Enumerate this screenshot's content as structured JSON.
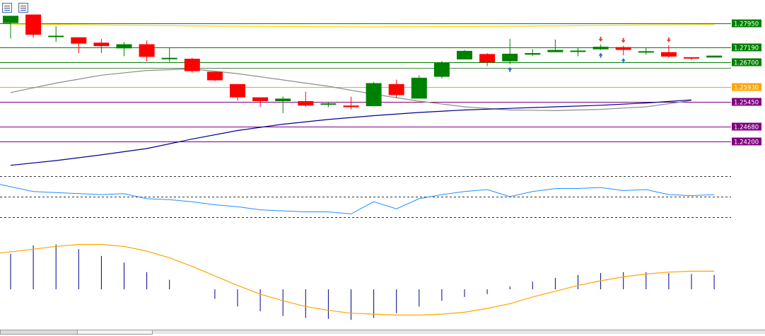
{
  "toolbar": {
    "icons": [
      "chart-list-icon",
      "chart-properties-icon"
    ]
  },
  "chart_data": {
    "type": "candlestick",
    "colors": {
      "bull": "#008000",
      "bear": "#ff0000",
      "ma_fast": "#8c8c8c",
      "ma_slow": "#00008b",
      "ma_long": "#ffd700",
      "rsi": "#1e90ff",
      "signal": "#ffa500",
      "histogram": "#00008b",
      "buy_arrow": "#1e6fd9",
      "sell_arrow": "#e04020"
    },
    "price_range": [
      1.2342,
      1.2868
    ],
    "candles": [
      {
        "o": 1.2795,
        "h": 1.2818,
        "l": 1.2746,
        "c": 1.2818
      },
      {
        "o": 1.2822,
        "h": 1.2822,
        "l": 1.2748,
        "c": 1.2758
      },
      {
        "o": 1.2755,
        "h": 1.2785,
        "l": 1.2735,
        "c": 1.2755
      },
      {
        "o": 1.275,
        "h": 1.275,
        "l": 1.27,
        "c": 1.273
      },
      {
        "o": 1.2733,
        "h": 1.2745,
        "l": 1.27,
        "c": 1.2722
      },
      {
        "o": 1.2715,
        "h": 1.2735,
        "l": 1.269,
        "c": 1.2728
      },
      {
        "o": 1.2728,
        "h": 1.274,
        "l": 1.2673,
        "c": 1.2688
      },
      {
        "o": 1.2683,
        "h": 1.2717,
        "l": 1.2672,
        "c": 1.2685
      },
      {
        "o": 1.2682,
        "h": 1.2685,
        "l": 1.2637,
        "c": 1.2643
      },
      {
        "o": 1.2641,
        "h": 1.2641,
        "l": 1.2611,
        "c": 1.2614
      },
      {
        "o": 1.2602,
        "h": 1.2602,
        "l": 1.255,
        "c": 1.256
      },
      {
        "o": 1.256,
        "h": 1.256,
        "l": 1.253,
        "c": 1.2548
      },
      {
        "o": 1.2548,
        "h": 1.2563,
        "l": 1.251,
        "c": 1.2556
      },
      {
        "o": 1.2548,
        "h": 1.2578,
        "l": 1.253,
        "c": 1.2534
      },
      {
        "o": 1.2537,
        "h": 1.2545,
        "l": 1.2529,
        "c": 1.2541
      },
      {
        "o": 1.2534,
        "h": 1.2562,
        "l": 1.2522,
        "c": 1.2529
      },
      {
        "o": 1.2532,
        "h": 1.2608,
        "l": 1.2532,
        "c": 1.2605
      },
      {
        "o": 1.2602,
        "h": 1.2616,
        "l": 1.2558,
        "c": 1.2567
      },
      {
        "o": 1.2556,
        "h": 1.263,
        "l": 1.2556,
        "c": 1.2622
      },
      {
        "o": 1.2625,
        "h": 1.2675,
        "l": 1.262,
        "c": 1.267
      },
      {
        "o": 1.268,
        "h": 1.271,
        "l": 1.268,
        "c": 1.2707
      },
      {
        "o": 1.2697,
        "h": 1.27,
        "l": 1.2659,
        "c": 1.2671
      },
      {
        "o": 1.2674,
        "h": 1.2745,
        "l": 1.2665,
        "c": 1.2698
      },
      {
        "o": 1.2695,
        "h": 1.2712,
        "l": 1.269,
        "c": 1.27
      },
      {
        "o": 1.2703,
        "h": 1.2743,
        "l": 1.2703,
        "c": 1.271
      },
      {
        "o": 1.2708,
        "h": 1.2717,
        "l": 1.269,
        "c": 1.2708
      },
      {
        "o": 1.2712,
        "h": 1.2727,
        "l": 1.271,
        "c": 1.272
      },
      {
        "o": 1.2719,
        "h": 1.2723,
        "l": 1.2693,
        "c": 1.271
      },
      {
        "o": 1.2702,
        "h": 1.2718,
        "l": 1.2695,
        "c": 1.2706
      },
      {
        "o": 1.2703,
        "h": 1.2725,
        "l": 1.2686,
        "c": 1.2689
      },
      {
        "o": 1.2687,
        "h": 1.2687,
        "l": 1.2678,
        "c": 1.2686
      },
      {
        "o": 1.2686,
        "h": 1.2692,
        "l": 1.2686,
        "c": 1.2692
      }
    ],
    "levels": [
      {
        "value": 1.2795,
        "label": "1.27950",
        "color": "#008000"
      },
      {
        "value": 1.2719,
        "label": "1.27190",
        "color": "#008000"
      },
      {
        "value": 1.267,
        "label": "1.26700",
        "color": "#008000"
      },
      {
        "value": 1.2654,
        "label": "",
        "color": "#4d8a4d"
      },
      {
        "value": 1.2593,
        "label": "1.25930",
        "color": "#ffa500"
      },
      {
        "value": 1.2545,
        "label": "1.25450",
        "color": "#800080"
      },
      {
        "value": 1.2468,
        "label": "1.24680",
        "color": "#800080"
      },
      {
        "value": 1.242,
        "label": "1.24200",
        "color": "#800080"
      }
    ],
    "ma_fast": [
      [
        0,
        1.2575
      ],
      [
        2,
        1.2605
      ],
      [
        4,
        1.263
      ],
      [
        6,
        1.2645
      ],
      [
        8,
        1.265
      ],
      [
        10,
        1.2635
      ],
      [
        12,
        1.2615
      ],
      [
        14,
        1.2595
      ],
      [
        16,
        1.257
      ],
      [
        18,
        1.2548
      ],
      [
        20,
        1.253
      ],
      [
        22,
        1.252
      ],
      [
        24,
        1.2518
      ],
      [
        26,
        1.2522
      ],
      [
        28,
        1.253
      ],
      [
        30,
        1.255
      ]
    ],
    "ma_slow": [
      [
        0,
        1.2345
      ],
      [
        2,
        1.236
      ],
      [
        4,
        1.2378
      ],
      [
        6,
        1.2398
      ],
      [
        8,
        1.2428
      ],
      [
        10,
        1.2455
      ],
      [
        12,
        1.2475
      ],
      [
        14,
        1.249
      ],
      [
        16,
        1.2502
      ],
      [
        18,
        1.2512
      ],
      [
        20,
        1.252
      ],
      [
        22,
        1.2525
      ],
      [
        24,
        1.253
      ],
      [
        26,
        1.2535
      ],
      [
        28,
        1.2542
      ],
      [
        30,
        1.2552
      ]
    ],
    "ma_long": [
      [
        0,
        1.2792
      ],
      [
        4,
        1.2789
      ],
      [
        8,
        1.2786
      ],
      [
        12,
        1.2784
      ],
      [
        16,
        1.2783
      ],
      [
        20,
        1.2784
      ],
      [
        24,
        1.2786
      ],
      [
        28,
        1.2789
      ],
      [
        31,
        1.279
      ]
    ],
    "buy_signals": [
      22,
      26,
      27
    ],
    "sell_signals": [
      26,
      27,
      29
    ],
    "rsi": {
      "range": [
        20,
        80
      ],
      "levels": [
        70,
        50,
        30
      ],
      "values": [
        62,
        55,
        54,
        53,
        52,
        53,
        48,
        47,
        45,
        42,
        40,
        37,
        36,
        35,
        35,
        33,
        45,
        38,
        48,
        52,
        55,
        57,
        50,
        55,
        58,
        58,
        59,
        56,
        57,
        52,
        51,
        52
      ]
    },
    "histogram": {
      "range": [
        -0.005,
        0.006
      ],
      "values": [
        0.0037,
        0.0046,
        0.0047,
        0.0042,
        0.0035,
        0.0028,
        0.0018,
        0.001,
        0.0,
        -0.001,
        -0.0018,
        -0.0023,
        -0.0028,
        -0.003,
        -0.0031,
        -0.0032,
        -0.003,
        -0.0025,
        -0.0018,
        -0.0012,
        -0.0008,
        -0.0005,
        0.0003,
        0.0008,
        0.0012,
        0.0015,
        0.0017,
        0.0018,
        0.0018,
        0.0017,
        0.0016,
        0.0015
      ],
      "signal": [
        0.0038,
        0.0042,
        0.0045,
        0.0047,
        0.0047,
        0.0045,
        0.004,
        0.0033,
        0.0024,
        0.0014,
        0.0004,
        -0.0005,
        -0.0012,
        -0.0018,
        -0.0022,
        -0.0025,
        -0.0026,
        -0.0027,
        -0.0027,
        -0.0026,
        -0.0024,
        -0.002,
        -0.0015,
        -0.0008,
        -0.0002,
        0.0004,
        0.0009,
        0.0013,
        0.0016,
        0.0018,
        0.0019,
        0.0019
      ]
    }
  }
}
